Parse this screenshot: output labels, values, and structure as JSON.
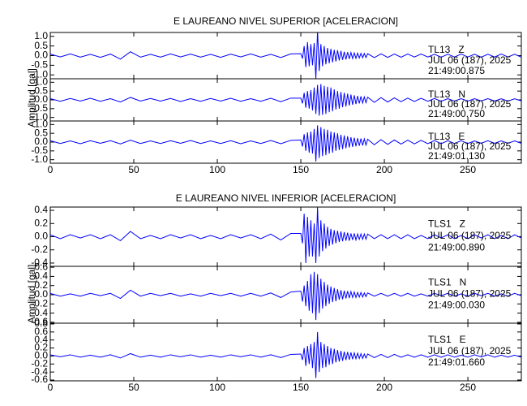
{
  "chart_data": [
    {
      "type": "line",
      "title": "E LAUREANO NIVEL SUPERIOR [ACELERACION]",
      "y_label": "Amplitud [gal]",
      "color": "#0000ff",
      "xlim": [
        0,
        282
      ],
      "xticks": [
        0,
        50,
        100,
        150,
        200,
        250
      ],
      "x": [
        0,
        6,
        12,
        18,
        24,
        30,
        36,
        42,
        48,
        54,
        60,
        66,
        72,
        78,
        84,
        90,
        96,
        102,
        108,
        114,
        120,
        126,
        132,
        138,
        144,
        150,
        151,
        152,
        153,
        154,
        155,
        156,
        157,
        158,
        159,
        160,
        161,
        162,
        163,
        164,
        165,
        166,
        167,
        168,
        169,
        170,
        171,
        172,
        173,
        174,
        175,
        176,
        177,
        178,
        179,
        180,
        181,
        182,
        183,
        184,
        185,
        186,
        187,
        188,
        189,
        190,
        194,
        198,
        202,
        206,
        210,
        214,
        218,
        222,
        226,
        230,
        234,
        238,
        242,
        246,
        250,
        254,
        258,
        262,
        266,
        270,
        274,
        278,
        282
      ],
      "panels": [
        {
          "station": "TL13   Z",
          "date": "JUL 06 (187), 2025",
          "time": "21:49:00.875",
          "ylim": [
            -1.2,
            1.2
          ],
          "yticks": [
            {
              "value": -1,
              "label": "-1.0"
            },
            -0.5,
            {
              "value": 0,
              "label": "0.0"
            },
            0.5,
            {
              "value": 1,
              "label": "1.0"
            }
          ],
          "values": [
            0.08,
            -0.07,
            0.09,
            -0.08,
            0.07,
            -0.09,
            0.08,
            -0.18,
            0.2,
            -0.08,
            0.07,
            -0.08,
            0.09,
            -0.07,
            0.08,
            -0.08,
            0.07,
            -0.09,
            0.08,
            -0.07,
            0.09,
            -0.08,
            0.07,
            -0.1,
            0.09,
            0.1,
            -0.15,
            0.5,
            -0.6,
            0.7,
            -0.55,
            0.6,
            -0.5,
            0.65,
            -1.2,
            1.3,
            -0.8,
            0.6,
            -0.55,
            0.5,
            -0.45,
            0.4,
            -0.4,
            0.35,
            -0.35,
            0.3,
            -0.3,
            0.28,
            -0.25,
            0.25,
            -0.22,
            0.2,
            -0.2,
            0.18,
            -0.17,
            0.16,
            -0.15,
            0.14,
            -0.14,
            0.13,
            -0.12,
            0.12,
            -0.11,
            0.11,
            -0.1,
            0.1,
            -0.1,
            0.09,
            -0.09,
            0.08,
            -0.08,
            0.08,
            -0.07,
            0.08,
            -0.07,
            0.07,
            -0.08,
            0.07,
            -0.07,
            0.08,
            -0.07,
            0.07,
            -0.08,
            0.07,
            -0.07,
            0.08,
            -0.07,
            0.07,
            -0.08
          ]
        },
        {
          "station": "TL13   N",
          "date": "JUL 06 (187), 2025",
          "time": "21:49:00.750",
          "ylim": [
            -1.2,
            1.2
          ],
          "yticks": [
            {
              "value": -1,
              "label": "-1.0"
            },
            -0.5,
            {
              "value": 0,
              "label": "0.0"
            },
            0.5,
            {
              "value": 1,
              "label": "1.0"
            }
          ],
          "values": [
            0.07,
            -0.08,
            0.08,
            -0.07,
            0.09,
            -0.08,
            0.07,
            -0.12,
            0.14,
            -0.07,
            0.08,
            -0.07,
            0.08,
            -0.09,
            0.07,
            -0.08,
            0.08,
            -0.07,
            0.09,
            -0.08,
            0.07,
            -0.08,
            0.09,
            -0.1,
            0.1,
            0.1,
            -0.2,
            0.4,
            -0.45,
            0.5,
            -0.5,
            0.55,
            -0.6,
            0.7,
            -0.8,
            0.85,
            -0.9,
            0.9,
            -0.85,
            0.8,
            -0.8,
            0.75,
            -0.7,
            0.7,
            -0.65,
            0.6,
            -0.55,
            0.5,
            -0.5,
            0.45,
            -0.42,
            0.4,
            -0.38,
            0.35,
            -0.32,
            0.3,
            -0.28,
            0.26,
            -0.24,
            0.22,
            -0.2,
            0.2,
            -0.18,
            0.17,
            -0.16,
            0.15,
            -0.14,
            0.13,
            -0.12,
            0.11,
            -0.1,
            0.1,
            -0.09,
            0.09,
            -0.08,
            0.08,
            -0.08,
            0.07,
            -0.07,
            0.07,
            -0.07,
            0.07,
            -0.06,
            0.07,
            -0.06,
            0.06,
            -0.07,
            0.06,
            -0.06
          ]
        },
        {
          "station": "TL13   E",
          "date": "JUL 06 (187), 2025",
          "time": "21:49:01.130",
          "ylim": [
            -1.2,
            1.2
          ],
          "yticks": [
            {
              "value": -1,
              "label": "-1.0"
            },
            -0.5,
            {
              "value": 0,
              "label": "0.0"
            },
            0.5,
            {
              "value": 1,
              "label": "1.0"
            }
          ],
          "values": [
            0.08,
            -0.08,
            0.07,
            -0.09,
            0.08,
            -0.07,
            0.08,
            -0.1,
            0.11,
            -0.08,
            0.07,
            -0.08,
            0.08,
            -0.07,
            0.09,
            -0.08,
            0.07,
            -0.08,
            0.08,
            -0.09,
            0.07,
            -0.08,
            0.09,
            -0.09,
            0.1,
            0.12,
            -0.25,
            0.45,
            -0.5,
            0.55,
            -0.6,
            0.6,
            -0.65,
            0.75,
            -1.1,
            0.95,
            -0.9,
            0.85,
            -0.8,
            0.75,
            -0.75,
            0.7,
            -0.65,
            0.6,
            -0.6,
            0.55,
            -0.5,
            0.5,
            -0.45,
            0.42,
            -0.4,
            0.38,
            -0.35,
            0.33,
            -0.3,
            0.28,
            -0.27,
            0.25,
            -0.24,
            0.22,
            -0.21,
            0.2,
            -0.19,
            0.18,
            -0.17,
            0.16,
            -0.15,
            0.14,
            -0.13,
            0.12,
            -0.11,
            0.11,
            -0.1,
            0.1,
            -0.09,
            0.09,
            -0.09,
            0.08,
            -0.08,
            0.08,
            -0.08,
            0.07,
            -0.07,
            0.08,
            -0.07,
            0.07,
            -0.07,
            0.07,
            -0.07
          ]
        }
      ]
    },
    {
      "type": "line",
      "title": "E LAUREANO NIVEL INFERIOR [ACELERACION]",
      "y_label": "Amplitud [gal]",
      "color": "#0000ff",
      "xlim": [
        0,
        282
      ],
      "xticks": [
        0,
        50,
        100,
        150,
        200,
        250
      ],
      "x": [
        0,
        6,
        12,
        18,
        24,
        30,
        36,
        42,
        48,
        54,
        60,
        66,
        72,
        78,
        84,
        90,
        96,
        102,
        108,
        114,
        120,
        126,
        132,
        138,
        144,
        150,
        151,
        152,
        153,
        154,
        155,
        156,
        157,
        158,
        159,
        160,
        161,
        162,
        163,
        164,
        165,
        166,
        167,
        168,
        169,
        170,
        171,
        172,
        173,
        174,
        175,
        176,
        177,
        178,
        179,
        180,
        181,
        182,
        183,
        184,
        185,
        186,
        187,
        188,
        189,
        190,
        194,
        198,
        202,
        206,
        210,
        214,
        218,
        222,
        226,
        230,
        234,
        238,
        242,
        246,
        250,
        254,
        258,
        262,
        266,
        270,
        274,
        278,
        282
      ],
      "panels": [
        {
          "station": "TLS1   Z",
          "date": "JUL 06 (187), 2025",
          "time": "21:49:00.890",
          "ylim": [
            -0.45,
            0.45
          ],
          "yticks": [
            -0.4,
            -0.2,
            {
              "value": 0,
              "label": "0.0"
            },
            0.2,
            0.4
          ],
          "values": [
            0.03,
            -0.03,
            0.03,
            -0.02,
            0.03,
            -0.03,
            0.03,
            -0.06,
            0.08,
            -0.03,
            0.02,
            -0.03,
            0.03,
            -0.02,
            0.03,
            -0.03,
            0.02,
            -0.03,
            0.03,
            -0.02,
            0.03,
            -0.03,
            0.04,
            -0.05,
            0.05,
            0.05,
            -0.1,
            0.35,
            -0.4,
            0.3,
            -0.3,
            0.25,
            -0.3,
            0.2,
            -0.4,
            0.45,
            -0.3,
            0.25,
            -0.22,
            0.2,
            -0.18,
            0.15,
            -0.14,
            0.12,
            -0.12,
            0.1,
            -0.1,
            0.09,
            -0.08,
            0.08,
            -0.07,
            0.07,
            -0.06,
            0.06,
            -0.06,
            0.05,
            -0.05,
            0.05,
            -0.05,
            0.04,
            -0.04,
            0.04,
            -0.04,
            0.04,
            -0.04,
            0.04,
            -0.03,
            0.03,
            -0.03,
            0.03,
            -0.03,
            0.03,
            -0.03,
            0.02,
            -0.03,
            0.03,
            -0.02,
            0.03,
            -0.03,
            0.02,
            -0.03,
            0.03,
            -0.02,
            0.03,
            -0.03,
            0.02,
            -0.03,
            0.03,
            -0.02
          ]
        },
        {
          "station": "TLS1   N",
          "date": "JUL 06 (187), 2025",
          "time": "21:49:00.030",
          "ylim": [
            -0.62,
            0.62
          ],
          "yticks": [
            -0.6,
            -0.4,
            -0.2,
            {
              "value": 0,
              "label": "0.0"
            },
            0.2,
            0.4,
            0.6
          ],
          "values": [
            0.03,
            -0.03,
            0.02,
            -0.03,
            0.03,
            -0.02,
            0.03,
            -0.08,
            0.1,
            -0.03,
            0.03,
            -0.02,
            0.03,
            -0.03,
            0.02,
            -0.03,
            0.03,
            -0.02,
            0.03,
            -0.03,
            0.03,
            -0.03,
            0.04,
            -0.06,
            0.06,
            0.08,
            -0.15,
            0.2,
            -0.25,
            0.3,
            -0.35,
            0.45,
            -0.4,
            0.5,
            -0.55,
            0.45,
            -0.4,
            0.35,
            -0.3,
            0.28,
            -0.25,
            0.22,
            -0.2,
            0.18,
            -0.16,
            0.15,
            -0.14,
            0.12,
            -0.11,
            0.1,
            -0.1,
            0.09,
            -0.08,
            0.08,
            -0.07,
            0.07,
            -0.06,
            0.06,
            -0.06,
            0.05,
            -0.05,
            0.05,
            -0.05,
            0.04,
            -0.04,
            0.04,
            -0.03,
            0.03,
            -0.03,
            0.03,
            -0.03,
            0.03,
            -0.03,
            0.02,
            -0.03,
            0.03,
            -0.02,
            0.03,
            -0.03,
            0.02,
            -0.03,
            0.03,
            -0.02,
            0.03,
            -0.03,
            0.02,
            -0.03,
            0.03,
            -0.02
          ]
        },
        {
          "station": "TLS1   E",
          "date": "JUL 06 (187), 2025",
          "time": "21:49:01.660",
          "ylim": [
            -0.62,
            0.82
          ],
          "yticks": [
            -0.6,
            -0.4,
            -0.2,
            {
              "value": 0,
              "label": "0.0"
            },
            0.2,
            0.4,
            0.6,
            0.8
          ],
          "values": [
            0.03,
            -0.02,
            0.03,
            -0.03,
            0.02,
            -0.03,
            0.03,
            -0.05,
            0.06,
            -0.03,
            0.02,
            -0.03,
            0.03,
            -0.02,
            0.03,
            -0.03,
            0.02,
            -0.03,
            0.03,
            -0.02,
            0.03,
            -0.03,
            0.03,
            -0.04,
            0.04,
            0.05,
            -0.1,
            0.2,
            -0.25,
            0.25,
            -0.2,
            0.3,
            -0.3,
            0.35,
            -0.55,
            0.6,
            -0.4,
            0.35,
            -0.3,
            0.3,
            -0.28,
            0.25,
            -0.22,
            0.2,
            -0.2,
            0.18,
            -0.16,
            0.15,
            -0.14,
            0.13,
            -0.12,
            0.11,
            -0.1,
            0.1,
            -0.09,
            0.09,
            -0.08,
            0.08,
            -0.07,
            0.07,
            -0.06,
            0.06,
            -0.06,
            0.05,
            -0.05,
            0.05,
            -0.04,
            0.04,
            -0.04,
            0.04,
            -0.03,
            0.03,
            -0.03,
            0.03,
            -0.03,
            0.03,
            -0.03,
            0.03,
            -0.03,
            0.02,
            -0.03,
            0.03,
            -0.02,
            0.03,
            -0.03,
            0.02,
            -0.03,
            0.02,
            -0.03
          ]
        }
      ]
    }
  ]
}
